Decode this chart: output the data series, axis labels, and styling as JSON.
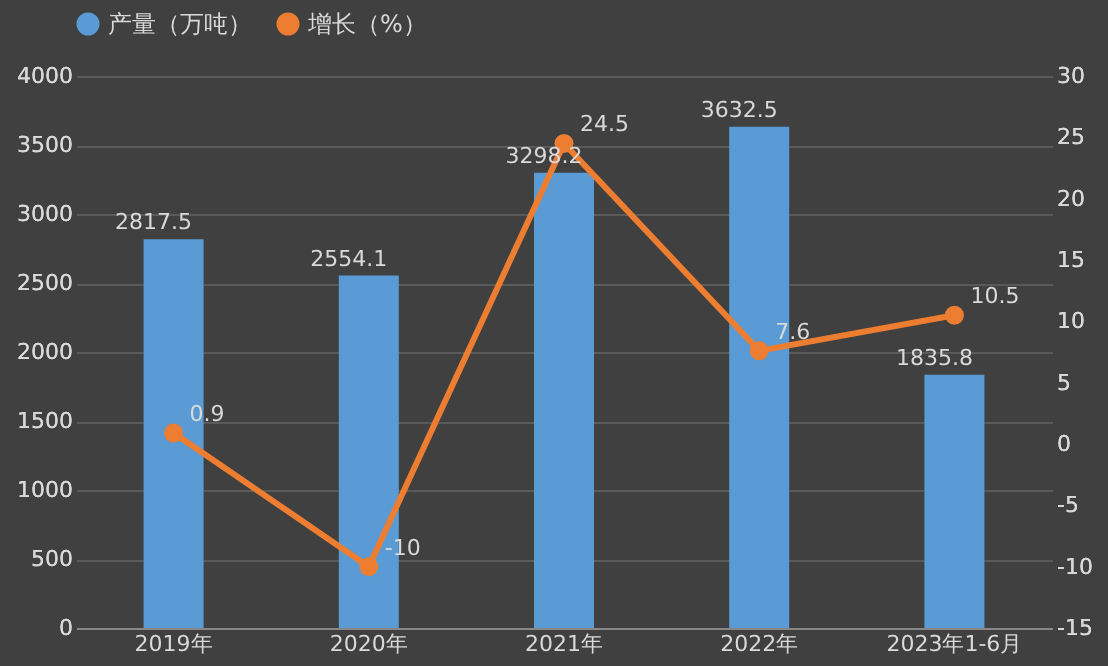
{
  "chart_data": {
    "type": "bar",
    "categories": [
      "2019年",
      "2020年",
      "2021年",
      "2022年",
      "2023年1-6月"
    ],
    "series": [
      {
        "name": "产量（万吨）",
        "color": "#5b9bd5",
        "values": [
          2817.5,
          2554.1,
          3298.2,
          3632.5,
          1835.8
        ]
      },
      {
        "name": "增长（%）",
        "type": "line",
        "axis": "y2",
        "color": "#ed7d31",
        "marker": "circle",
        "values": [
          0.9,
          -10,
          24.5,
          7.6,
          10.5
        ]
      }
    ],
    "ylim": [
      0,
      4000
    ],
    "yticks": [
      0,
      500,
      1000,
      1500,
      2000,
      2500,
      3000,
      3500,
      4000
    ],
    "y2lim": [
      -15,
      30
    ],
    "y2ticks": [
      -15,
      -10,
      -5,
      0,
      5,
      10,
      15,
      20,
      25,
      30
    ],
    "grid": "y",
    "legend": "top",
    "data_labels": true
  }
}
